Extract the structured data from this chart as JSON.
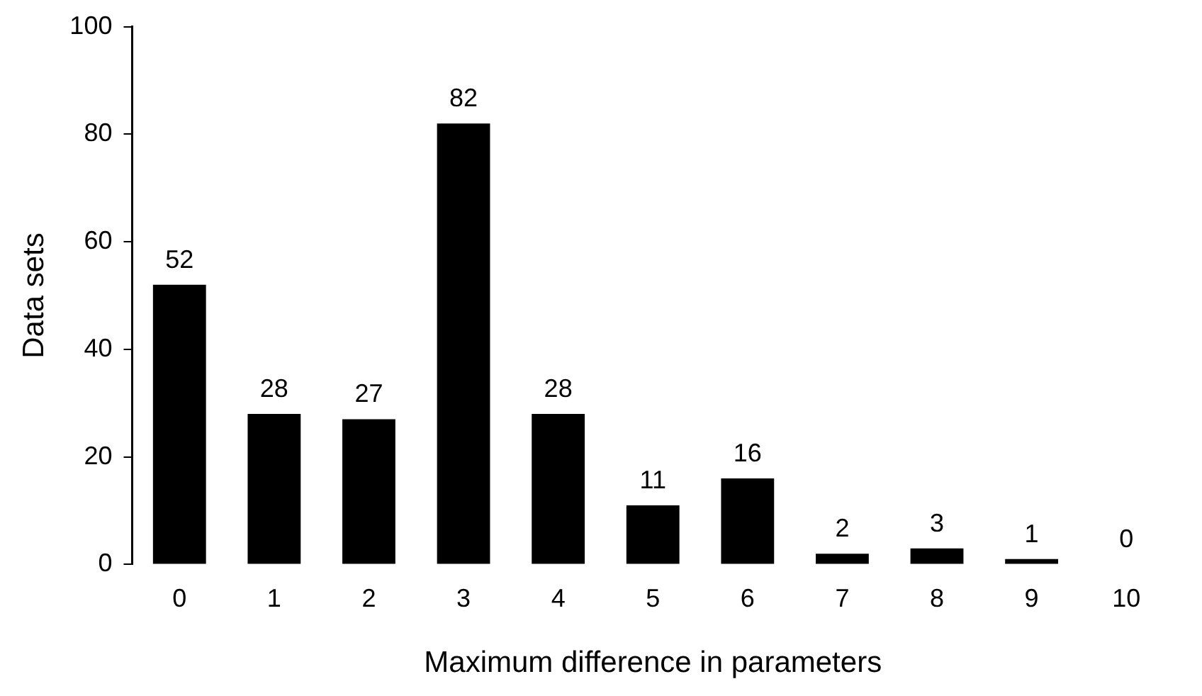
{
  "chart_data": {
    "type": "bar",
    "xlabel": "Maximum difference in parameters",
    "ylabel": "Data sets",
    "categories": [
      "0",
      "1",
      "2",
      "3",
      "4",
      "5",
      "6",
      "7",
      "8",
      "9",
      "10"
    ],
    "values": [
      52,
      28,
      27,
      82,
      28,
      11,
      16,
      2,
      3,
      1,
      0
    ],
    "color": "#000000",
    "ylim": [
      0,
      100
    ],
    "yticks": [
      0,
      20,
      40,
      60,
      80,
      100
    ],
    "data_labels": true
  }
}
